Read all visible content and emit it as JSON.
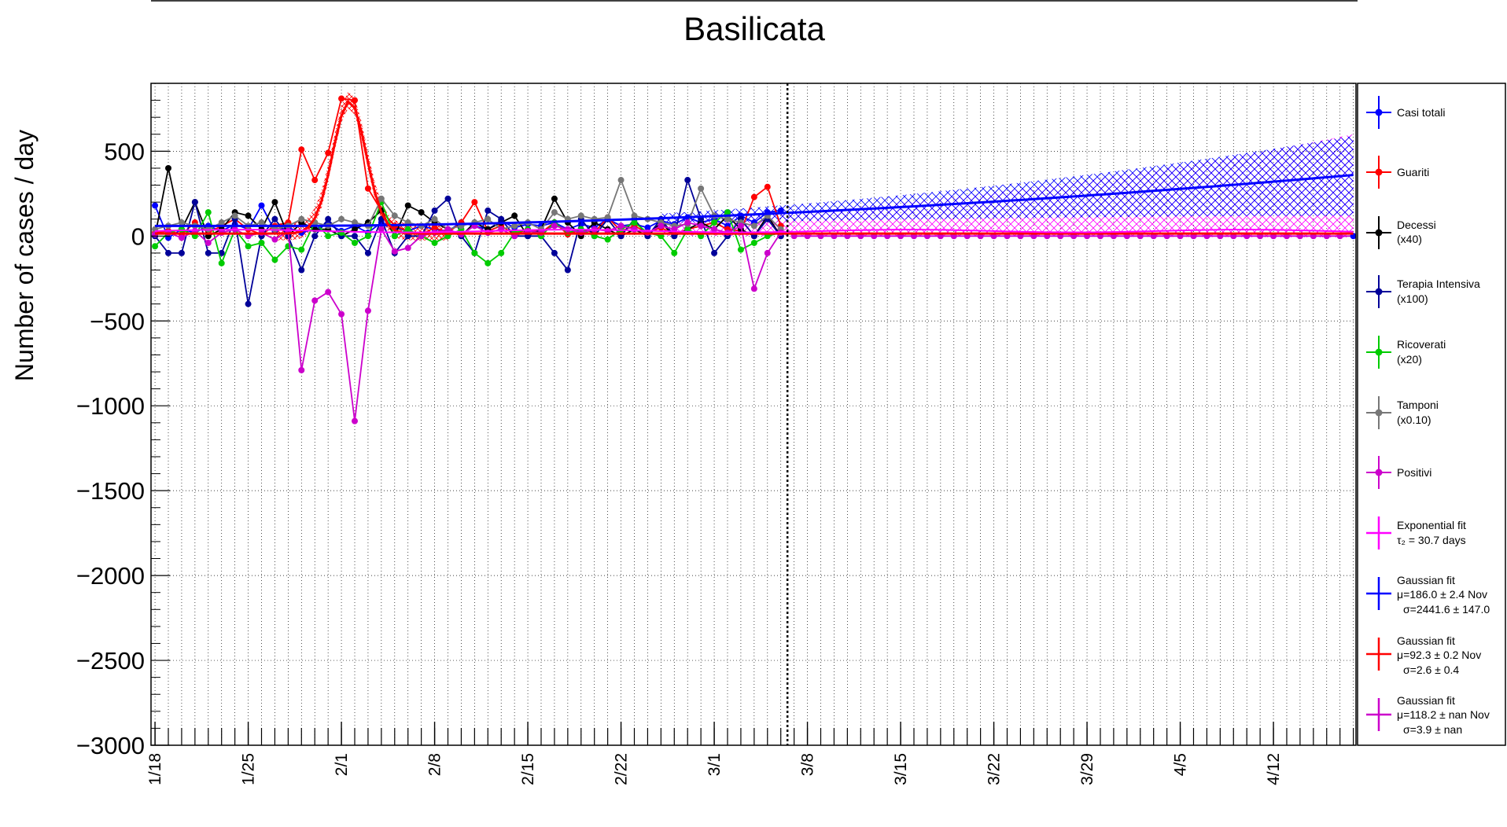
{
  "chart_data": {
    "type": "line",
    "title": "Basilicata",
    "ylabel": "Number of cases / day",
    "xlabel": "",
    "ylim": [
      -3000,
      900
    ],
    "y_ticks": [
      "500",
      "0",
      "−500",
      "−1000",
      "−1500",
      "−2000",
      "−2500",
      "−3000"
    ],
    "y_tick_values": [
      500,
      0,
      -500,
      -1000,
      -1500,
      -2000,
      -2500,
      -3000
    ],
    "x_range_days": [
      0,
      90
    ],
    "x_ticks": [
      "1/18",
      "1/25",
      "2/1",
      "2/8",
      "2/15",
      "2/22",
      "3/1",
      "3/8",
      "3/15",
      "3/22",
      "3/29",
      "4/5",
      "4/12"
    ],
    "x_tick_days": [
      0,
      7,
      14,
      21,
      28,
      35,
      42,
      49,
      56,
      63,
      70,
      77,
      84
    ],
    "grid": true,
    "legend_position": "right",
    "vertical_marker_day": 47.5,
    "series": [
      {
        "name": "Casi totali",
        "color": "#0000ff",
        "x": [
          0,
          1,
          2,
          3,
          4,
          5,
          6,
          7,
          8,
          9,
          10,
          11,
          12,
          13,
          14,
          15,
          16,
          17,
          18,
          19,
          20,
          21,
          22,
          23,
          24,
          25,
          26,
          27,
          28,
          29,
          30,
          31,
          32,
          33,
          34,
          35,
          36,
          37,
          38,
          39,
          40,
          41,
          42,
          43,
          44,
          45,
          46,
          47
        ],
        "values": [
          180,
          -10,
          40,
          20,
          60,
          30,
          70,
          40,
          180,
          30,
          50,
          20,
          40,
          70,
          30,
          60,
          20,
          80,
          50,
          30,
          60,
          40,
          30,
          80,
          60,
          40,
          90,
          50,
          70,
          60,
          80,
          40,
          70,
          50,
          100,
          60,
          70,
          50,
          90,
          70,
          110,
          80,
          100,
          60,
          120,
          80,
          140,
          150
        ]
      },
      {
        "name": "Guariti",
        "color": "#ff0000",
        "x": [
          0,
          1,
          2,
          3,
          4,
          5,
          6,
          7,
          8,
          9,
          10,
          11,
          12,
          13,
          14,
          15,
          16,
          17,
          18,
          19,
          20,
          21,
          22,
          23,
          24,
          25,
          26,
          27,
          28,
          29,
          30,
          31,
          32,
          33,
          34,
          35,
          36,
          37,
          38,
          39,
          40,
          41,
          42,
          43,
          44,
          45,
          46,
          47
        ],
        "values": [
          20,
          30,
          10,
          80,
          20,
          60,
          100,
          40,
          10,
          60,
          80,
          510,
          330,
          490,
          810,
          800,
          280,
          150,
          60,
          30,
          10,
          50,
          20,
          80,
          200,
          30,
          60,
          10,
          40,
          20,
          80,
          10,
          40,
          20,
          110,
          30,
          60,
          20,
          50,
          10,
          40,
          60,
          80,
          40,
          30,
          230,
          290,
          60
        ]
      },
      {
        "name": "Decessi",
        "note": "(x40)",
        "color": "#000000",
        "x": [
          0,
          1,
          2,
          3,
          4,
          5,
          6,
          7,
          8,
          9,
          10,
          11,
          12,
          13,
          14,
          15,
          16,
          17,
          18,
          19,
          20,
          21,
          22,
          23,
          24,
          25,
          26,
          27,
          28,
          29,
          30,
          31,
          32,
          33,
          34,
          35,
          36,
          37,
          38,
          39,
          40,
          41,
          42,
          43,
          44,
          45,
          46,
          47
        ],
        "values": [
          0,
          400,
          40,
          200,
          0,
          40,
          140,
          120,
          40,
          200,
          0,
          80,
          40,
          40,
          0,
          40,
          80,
          150,
          0,
          180,
          140,
          80,
          40,
          0,
          80,
          40,
          80,
          120,
          0,
          40,
          220,
          80,
          0,
          80,
          40,
          0,
          40,
          0,
          80,
          0,
          40,
          80,
          40,
          120,
          40,
          0,
          120,
          0
        ]
      },
      {
        "name": "Terapia Intensiva",
        "note": "(x100)",
        "color": "#000099",
        "x": [
          0,
          1,
          2,
          3,
          4,
          5,
          6,
          7,
          8,
          9,
          10,
          11,
          12,
          13,
          14,
          15,
          16,
          17,
          18,
          19,
          20,
          21,
          22,
          23,
          24,
          25,
          26,
          27,
          28,
          29,
          30,
          31,
          32,
          33,
          34,
          35,
          36,
          37,
          38,
          39,
          40,
          41,
          42,
          43,
          44,
          45,
          46,
          47
        ],
        "values": [
          0,
          -100,
          -100,
          200,
          -100,
          -100,
          100,
          -400,
          0,
          100,
          0,
          -200,
          0,
          100,
          0,
          0,
          -100,
          100,
          -100,
          0,
          0,
          150,
          220,
          0,
          -100,
          150,
          100,
          0,
          0,
          0,
          -100,
          -200,
          100,
          0,
          100,
          0,
          100,
          0,
          100,
          0,
          330,
          100,
          -100,
          0,
          100,
          0,
          100,
          0
        ]
      },
      {
        "name": "Ricoverati",
        "note": "(x20)",
        "color": "#00cc00",
        "x": [
          0,
          1,
          2,
          3,
          4,
          5,
          6,
          7,
          8,
          9,
          10,
          11,
          12,
          13,
          14,
          15,
          16,
          17,
          18,
          19,
          20,
          21,
          22,
          23,
          24,
          25,
          26,
          27,
          28,
          29,
          30,
          31,
          32,
          33,
          34,
          35,
          36,
          37,
          38,
          39,
          40,
          41,
          42,
          43,
          44,
          45,
          46,
          47
        ],
        "values": [
          -60,
          20,
          40,
          0,
          140,
          -160,
          40,
          -60,
          -40,
          -140,
          -60,
          -80,
          80,
          0,
          20,
          -40,
          0,
          200,
          0,
          40,
          0,
          -40,
          0,
          40,
          -100,
          -160,
          -100,
          20,
          40,
          0,
          80,
          20,
          40,
          0,
          -20,
          40,
          80,
          20,
          0,
          -100,
          40,
          0,
          80,
          140,
          -80,
          -40,
          0,
          20
        ]
      },
      {
        "name": "Tamponi",
        "note": "(x0.10)",
        "color": "#777777",
        "x": [
          0,
          1,
          2,
          3,
          4,
          5,
          6,
          7,
          8,
          9,
          10,
          11,
          12,
          13,
          14,
          15,
          16,
          17,
          18,
          19,
          20,
          21,
          22,
          23,
          24,
          25,
          26,
          27,
          28,
          29,
          30,
          31,
          32,
          33,
          34,
          35,
          36,
          37,
          38,
          39,
          40,
          41,
          42,
          43,
          44,
          45,
          46,
          47
        ],
        "values": [
          40,
          60,
          80,
          60,
          40,
          80,
          120,
          60,
          80,
          40,
          60,
          100,
          80,
          60,
          100,
          80,
          60,
          220,
          120,
          80,
          60,
          100,
          40,
          60,
          80,
          100,
          40,
          60,
          80,
          40,
          140,
          100,
          120,
          100,
          110,
          330,
          120,
          100,
          80,
          60,
          70,
          280,
          120,
          100,
          80,
          60,
          120,
          40
        ]
      },
      {
        "name": "Positivi",
        "color": "#cc00cc",
        "x": [
          0,
          1,
          2,
          3,
          4,
          5,
          6,
          7,
          8,
          9,
          10,
          11,
          12,
          13,
          14,
          15,
          16,
          17,
          18,
          19,
          20,
          21,
          22,
          23,
          24,
          25,
          26,
          27,
          28,
          29,
          30,
          31,
          32,
          33,
          34,
          35,
          36,
          37,
          38,
          39,
          40,
          41,
          42,
          43,
          44,
          45,
          46,
          47
        ],
        "values": [
          10,
          20,
          -10,
          30,
          -40,
          20,
          40,
          0,
          20,
          -20,
          30,
          -790,
          -380,
          -330,
          -460,
          -1090,
          -440,
          40,
          -90,
          -70,
          0,
          20,
          40,
          10,
          60,
          20,
          40,
          0,
          30,
          20,
          60,
          40,
          20,
          40,
          30,
          60,
          40,
          20,
          60,
          40,
          80,
          60,
          40,
          20,
          60,
          -310,
          -100,
          20
        ]
      }
    ],
    "fits": [
      {
        "name": "Exponential fit",
        "label": "τ₂ = 30.7 days",
        "color": "#ff00ff"
      },
      {
        "name": "Gaussian fit",
        "label1": "μ=186.0 ± 2.4 Nov",
        "label2": "σ=2441.6 ± 147.0",
        "color": "#0000ff"
      },
      {
        "name": "Gaussian fit",
        "label1": "μ=92.3 ± 0.2 Nov",
        "label2": "σ=2.6 ± 0.4",
        "color": "#ff0000"
      },
      {
        "name": "Gaussian fit",
        "label1": "μ=118.2 ± nan Nov",
        "label2": "σ=3.9 ± nan",
        "color": "#cc00cc"
      }
    ]
  }
}
